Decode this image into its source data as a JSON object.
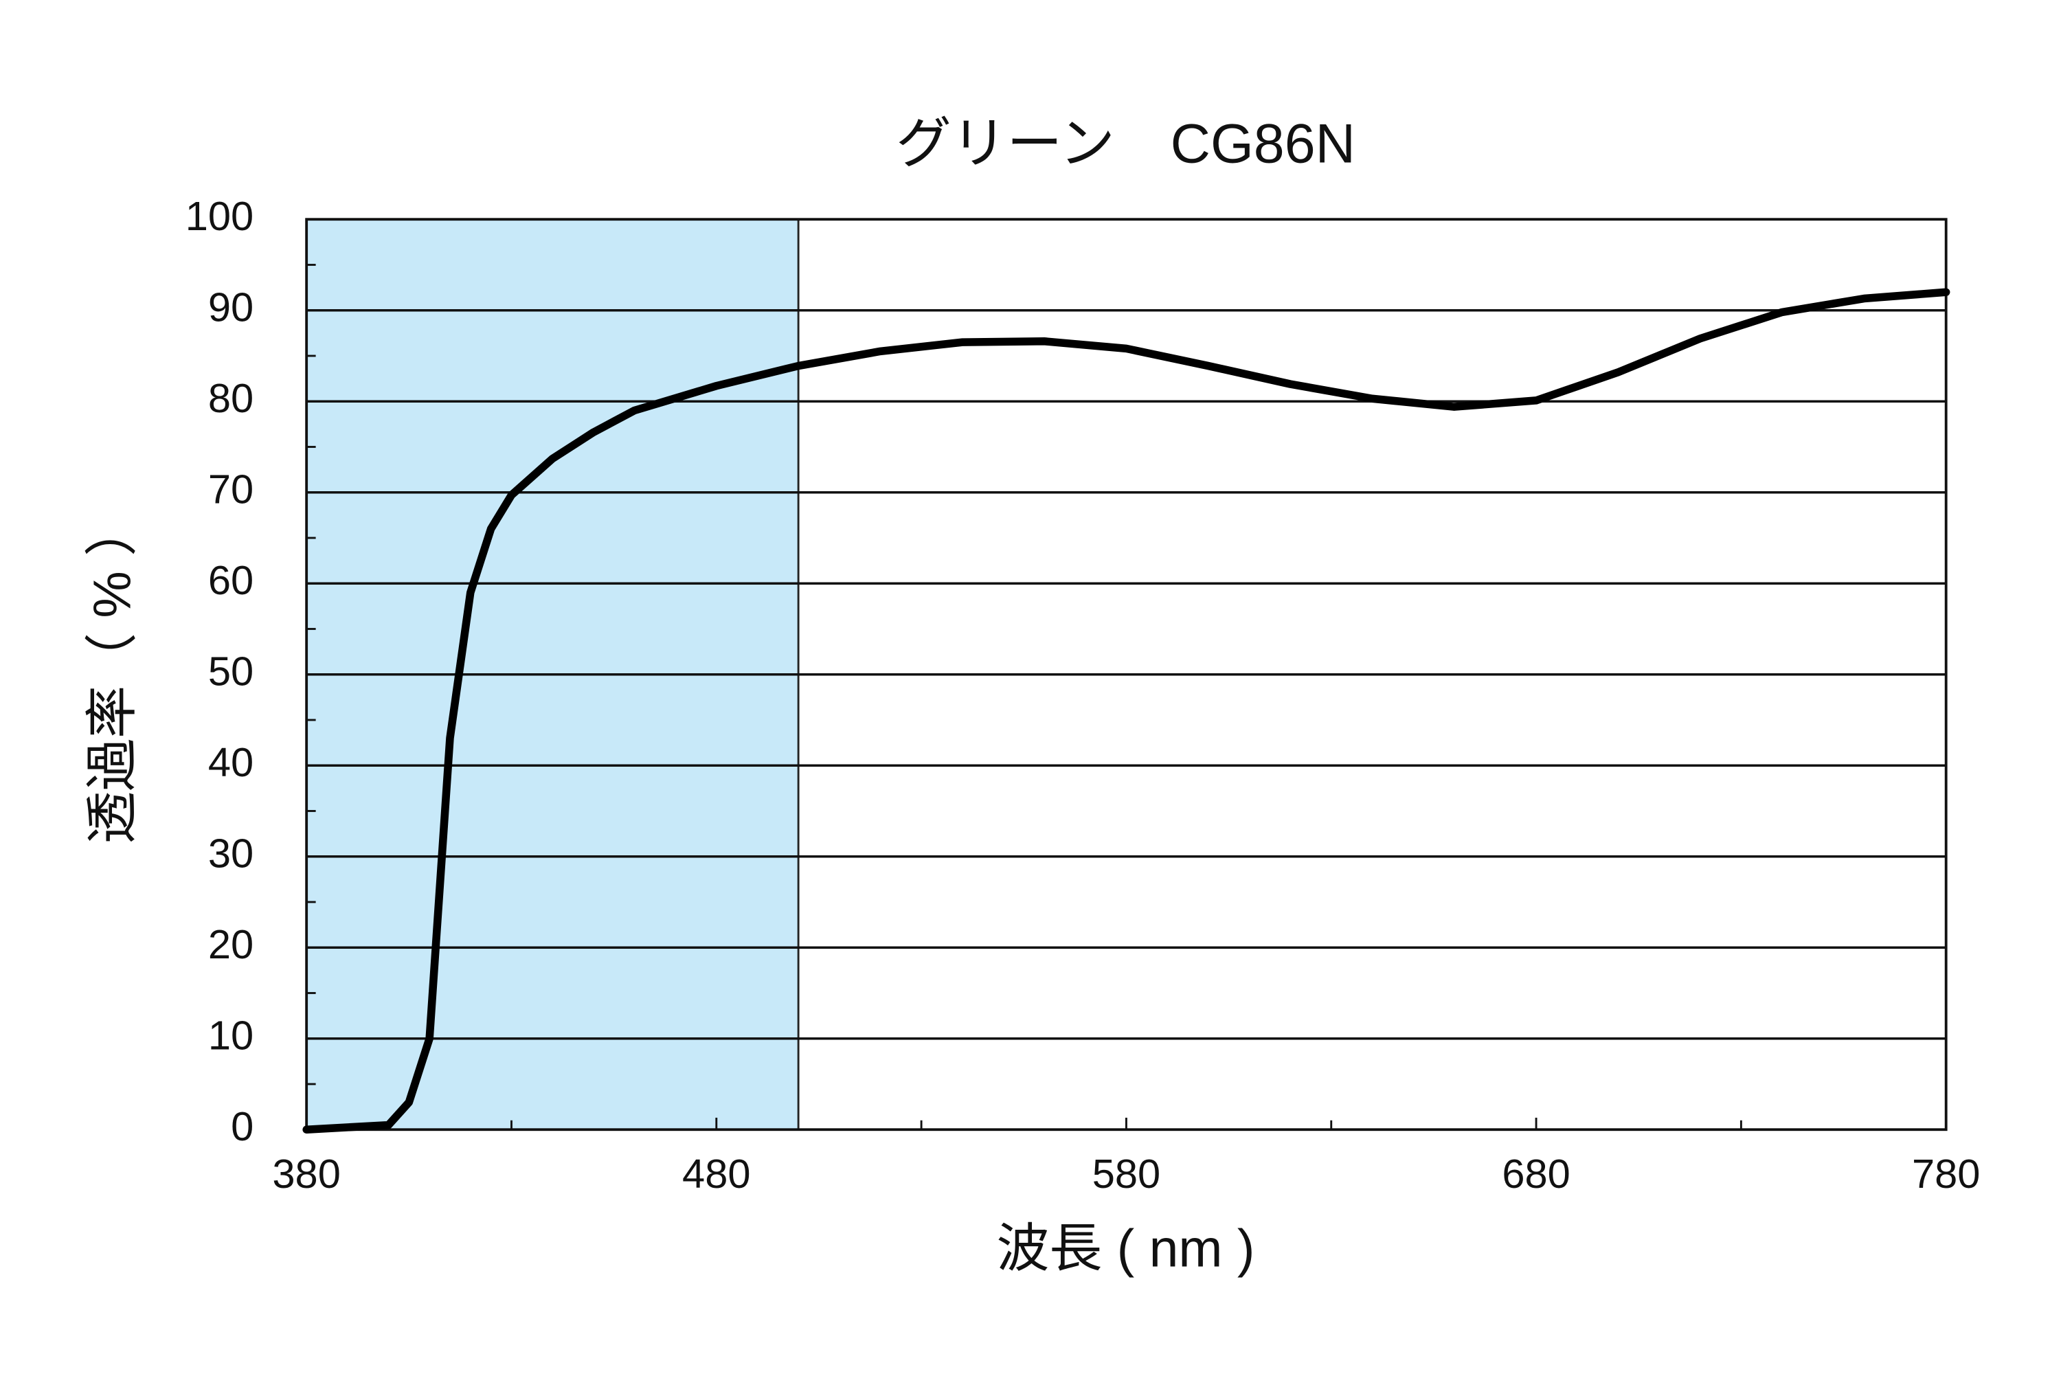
{
  "chart_data": {
    "type": "line",
    "title": "グリーン　CG86N",
    "x_label": "波長 ( nm )",
    "y_label": "透過率（ % ）",
    "x": [
      380,
      400,
      405,
      410,
      415,
      420,
      425,
      430,
      440,
      450,
      460,
      480,
      500,
      520,
      540,
      560,
      580,
      600,
      620,
      640,
      660,
      680,
      700,
      720,
      740,
      760,
      780
    ],
    "series": [
      {
        "name": "CG86N",
        "color": "#000000",
        "values": [
          0,
          0.5,
          3,
          10,
          43,
          59,
          66,
          69.7,
          73.7,
          76.6,
          79,
          81.7,
          83.9,
          85.5,
          86.5,
          86.6,
          85.8,
          83.9,
          81.9,
          80.3,
          79.4,
          80.1,
          83.2,
          86.9,
          89.8,
          91.3,
          92
        ]
      }
    ],
    "shaded_range": [
      380,
      500
    ],
    "shaded_color": "#c8e9f9",
    "xlim": [
      380,
      780
    ],
    "xticks": [
      380,
      480,
      580,
      680,
      780
    ],
    "xminor": [
      430,
      530,
      630,
      730
    ],
    "ylim": [
      0,
      100
    ],
    "yticks": [
      0,
      10,
      20,
      30,
      40,
      50,
      60,
      70,
      80,
      90,
      100
    ],
    "yminor": [
      5,
      15,
      25,
      35,
      45,
      55,
      65,
      75,
      85,
      95
    ],
    "grid": true
  }
}
